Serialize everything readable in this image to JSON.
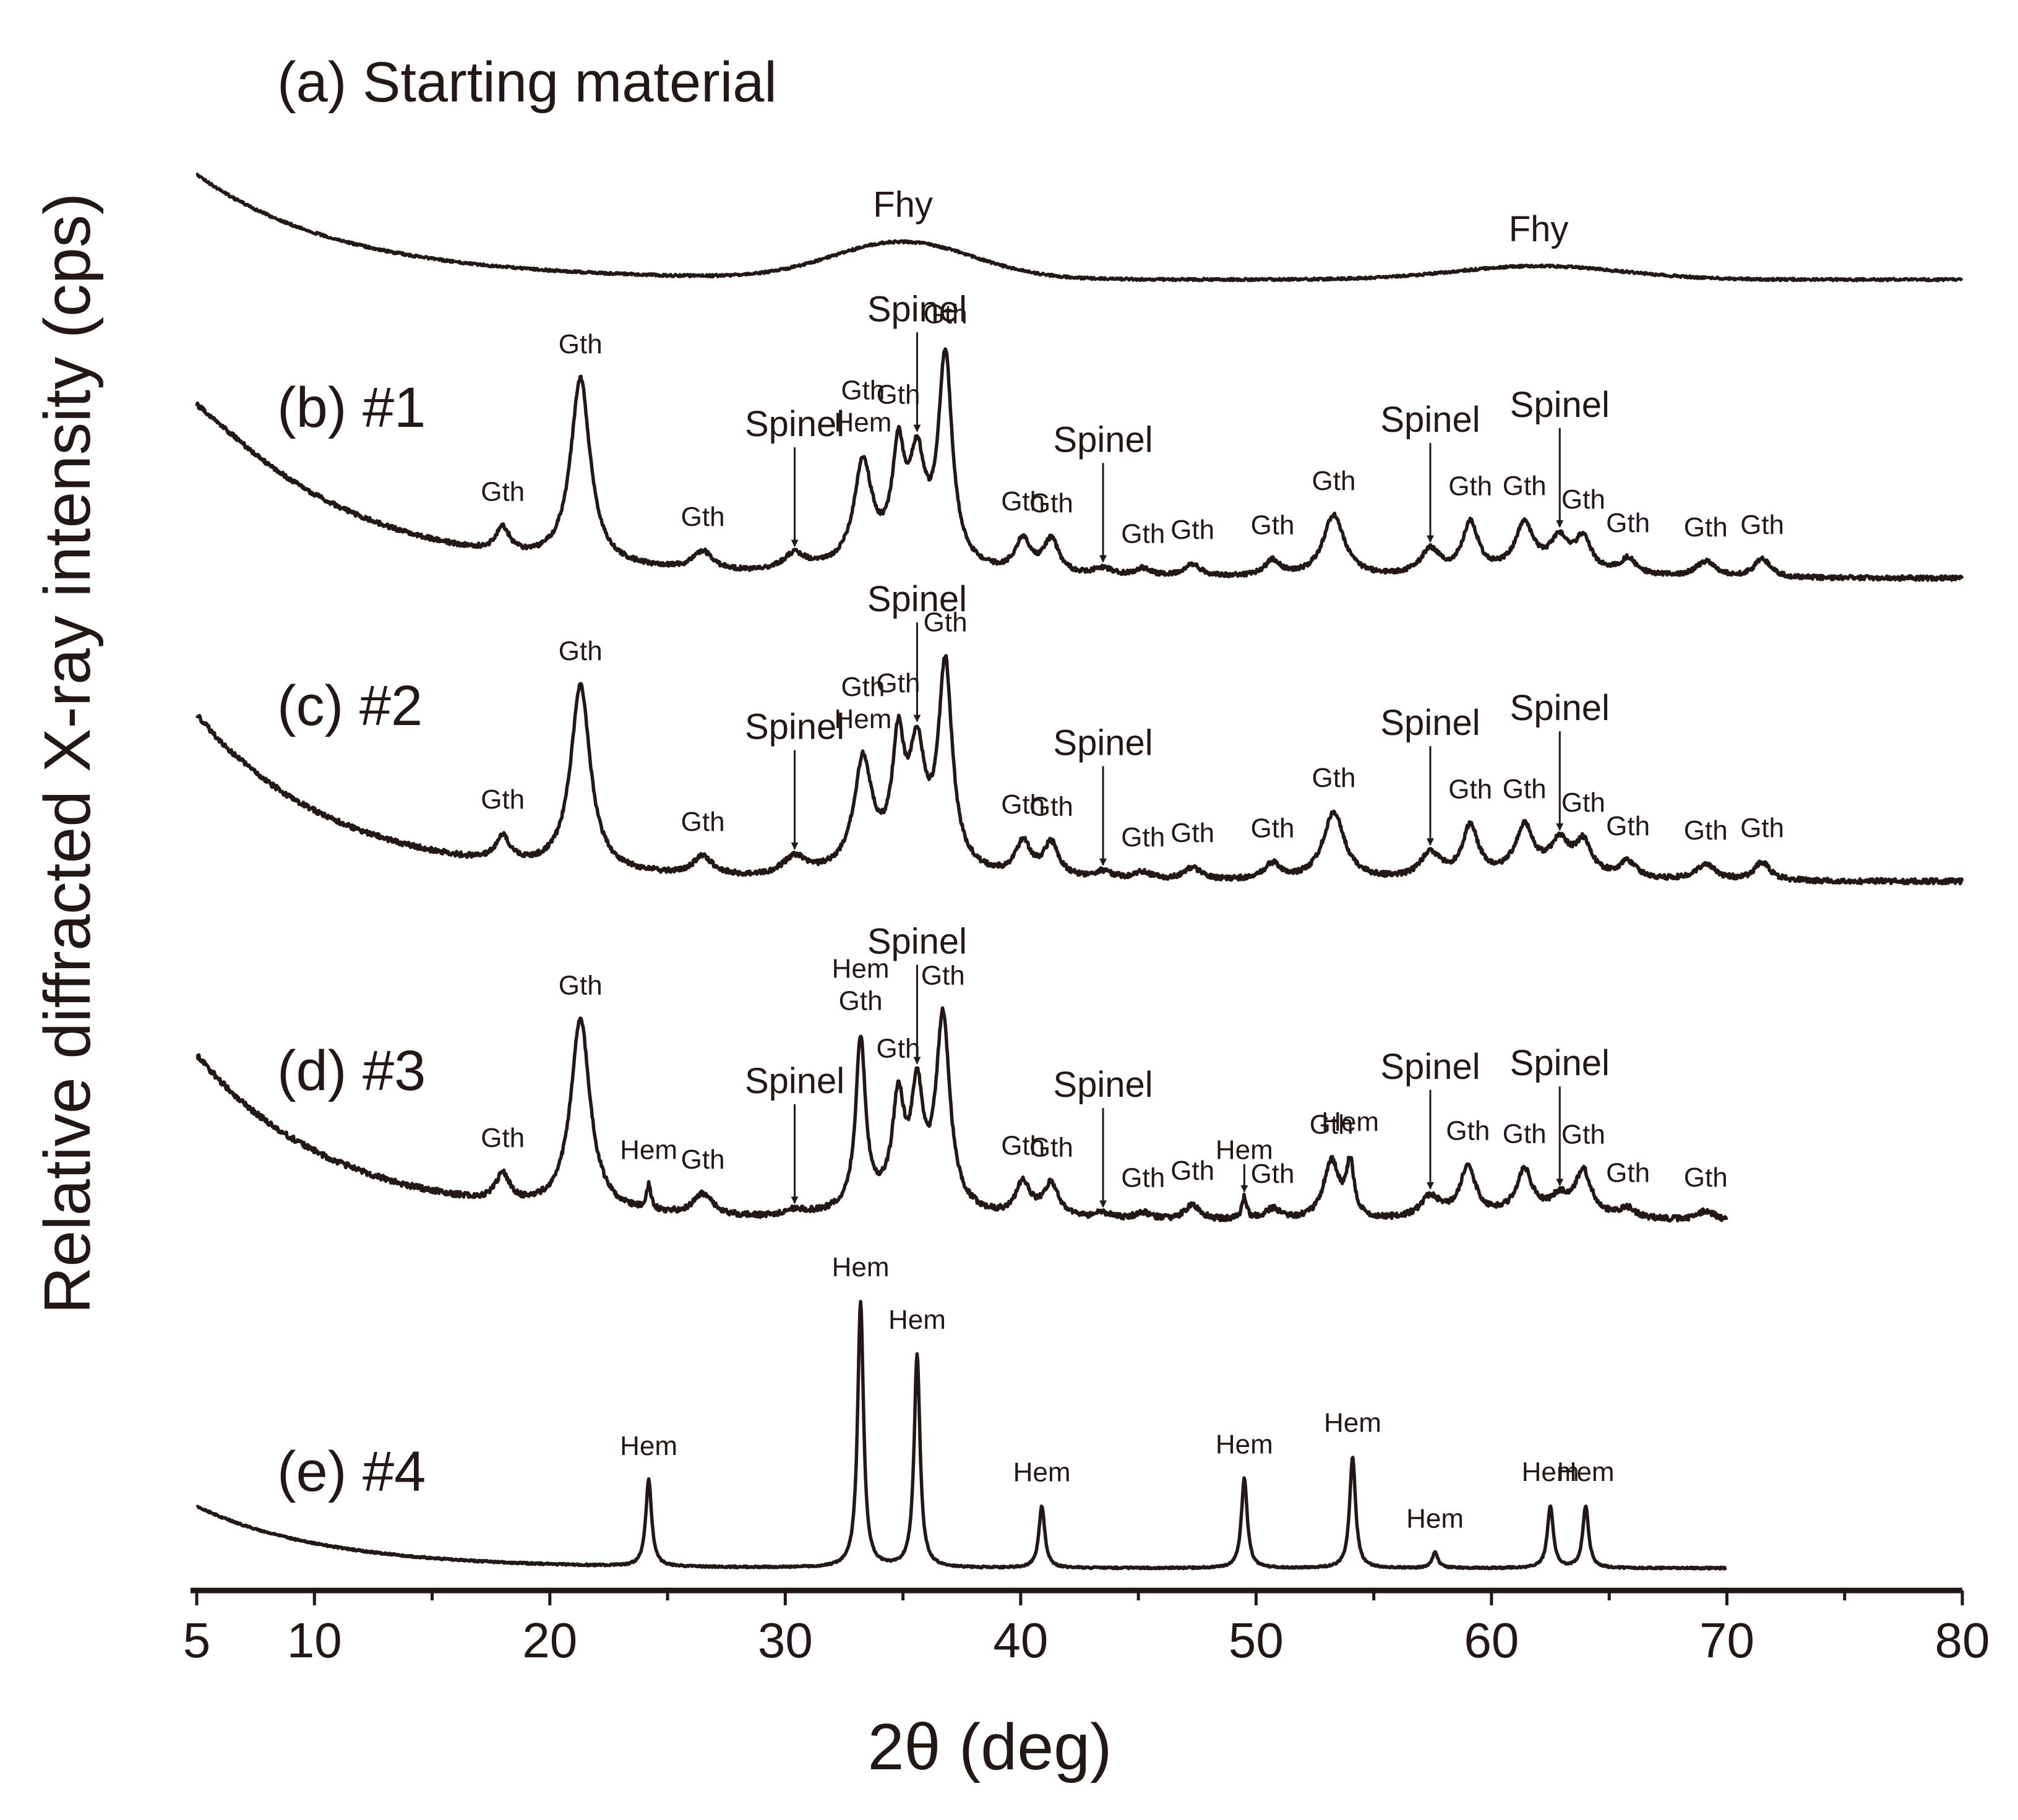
{
  "chart_data": {
    "type": "line",
    "title": "",
    "xlabel": "2θ (deg)",
    "ylabel": "Relative diffracted X-ray intensity (cps)",
    "xlim": [
      5,
      80
    ],
    "x_ticks": [
      5,
      10,
      20,
      30,
      40,
      50,
      60,
      70,
      80
    ],
    "x_tick_labels": [
      "5",
      "10",
      "20",
      "30",
      "40",
      "50",
      "60",
      "70",
      "80"
    ],
    "x_minor_ticks": [
      15,
      25,
      35,
      45,
      55,
      65,
      75
    ],
    "y_ticks_shown": false,
    "grid": false,
    "colors": {
      "trace": "#231815",
      "text": "#231815"
    },
    "series": [
      {
        "name": "(a) Starting material",
        "x_end": 80,
        "peaks": [
          {
            "x": 35.0,
            "label": "Fhy"
          },
          {
            "x": 62.0,
            "label": "Fhy"
          }
        ]
      },
      {
        "name": "(b) #1",
        "x_end": 80,
        "peaks": [
          {
            "x": 18.0,
            "label": "Gth"
          },
          {
            "x": 21.3,
            "label": "Gth"
          },
          {
            "x": 26.5,
            "label": "Gth"
          },
          {
            "x": 30.4,
            "label": "Spinel",
            "arrow": true
          },
          {
            "x": 33.3,
            "label": "Hem"
          },
          {
            "x": 33.3,
            "label": "Gth"
          },
          {
            "x": 34.8,
            "label": "Gth"
          },
          {
            "x": 35.6,
            "label": "Spinel",
            "arrow": true
          },
          {
            "x": 36.8,
            "label": "Gth"
          },
          {
            "x": 40.1,
            "label": "Gth"
          },
          {
            "x": 41.3,
            "label": "Gth"
          },
          {
            "x": 43.5,
            "label": "Spinel",
            "arrow": true
          },
          {
            "x": 45.2,
            "label": "Gth"
          },
          {
            "x": 47.3,
            "label": "Gth"
          },
          {
            "x": 50.7,
            "label": "Gth"
          },
          {
            "x": 53.3,
            "label": "Gth"
          },
          {
            "x": 57.4,
            "label": "Spinel",
            "arrow": true
          },
          {
            "x": 59.1,
            "label": "Gth"
          },
          {
            "x": 61.4,
            "label": "Gth"
          },
          {
            "x": 62.9,
            "label": "Spinel",
            "arrow": true
          },
          {
            "x": 63.9,
            "label": "Gth"
          },
          {
            "x": 65.8,
            "label": "Gth"
          },
          {
            "x": 69.1,
            "label": "Gth"
          },
          {
            "x": 71.5,
            "label": "Gth"
          }
        ]
      },
      {
        "name": "(c) #2",
        "x_end": 80,
        "peaks": [
          {
            "x": 18.0,
            "label": "Gth"
          },
          {
            "x": 21.3,
            "label": "Gth"
          },
          {
            "x": 26.5,
            "label": "Gth"
          },
          {
            "x": 30.4,
            "label": "Spinel",
            "arrow": true
          },
          {
            "x": 33.3,
            "label": "Hem"
          },
          {
            "x": 33.3,
            "label": "Gth"
          },
          {
            "x": 34.8,
            "label": "Gth"
          },
          {
            "x": 35.6,
            "label": "Spinel",
            "arrow": true
          },
          {
            "x": 36.8,
            "label": "Gth"
          },
          {
            "x": 40.1,
            "label": "Gth"
          },
          {
            "x": 41.3,
            "label": "Gth"
          },
          {
            "x": 43.5,
            "label": "Spinel",
            "arrow": true
          },
          {
            "x": 45.2,
            "label": "Gth"
          },
          {
            "x": 47.3,
            "label": "Gth"
          },
          {
            "x": 50.7,
            "label": "Gth"
          },
          {
            "x": 53.3,
            "label": "Gth"
          },
          {
            "x": 57.4,
            "label": "Spinel",
            "arrow": true
          },
          {
            "x": 59.1,
            "label": "Gth"
          },
          {
            "x": 61.4,
            "label": "Gth"
          },
          {
            "x": 62.9,
            "label": "Spinel",
            "arrow": true
          },
          {
            "x": 63.9,
            "label": "Gth"
          },
          {
            "x": 65.8,
            "label": "Gth"
          },
          {
            "x": 69.1,
            "label": "Gth"
          },
          {
            "x": 71.5,
            "label": "Gth"
          }
        ]
      },
      {
        "name": "(d) #3",
        "x_end": 70,
        "peaks": [
          {
            "x": 18.0,
            "label": "Gth"
          },
          {
            "x": 21.3,
            "label": "Gth"
          },
          {
            "x": 24.2,
            "label": "Hem"
          },
          {
            "x": 26.5,
            "label": "Gth"
          },
          {
            "x": 30.4,
            "label": "Spinel",
            "arrow": true
          },
          {
            "x": 33.2,
            "label": "Gth"
          },
          {
            "x": 33.2,
            "label": "Hem"
          },
          {
            "x": 34.8,
            "label": "Gth"
          },
          {
            "x": 35.6,
            "label": "Spinel",
            "arrow": true
          },
          {
            "x": 36.7,
            "label": "Gth"
          },
          {
            "x": 40.1,
            "label": "Gth"
          },
          {
            "x": 41.3,
            "label": "Gth"
          },
          {
            "x": 43.5,
            "label": "Spinel",
            "arrow": true
          },
          {
            "x": 45.2,
            "label": "Gth"
          },
          {
            "x": 47.3,
            "label": "Gth"
          },
          {
            "x": 49.5,
            "label": "Hem",
            "arrow": true
          },
          {
            "x": 50.7,
            "label": "Gth"
          },
          {
            "x": 53.2,
            "label": "Gth"
          },
          {
            "x": 54.0,
            "label": "Hem"
          },
          {
            "x": 57.4,
            "label": "Spinel",
            "arrow": true
          },
          {
            "x": 59.0,
            "label": "Gth"
          },
          {
            "x": 61.4,
            "label": "Gth"
          },
          {
            "x": 62.9,
            "label": "Spinel",
            "arrow": true
          },
          {
            "x": 63.9,
            "label": "Gth"
          },
          {
            "x": 65.8,
            "label": "Gth"
          },
          {
            "x": 69.1,
            "label": "Gth"
          }
        ]
      },
      {
        "name": "(e) #4",
        "x_end": 70,
        "peaks": [
          {
            "x": 24.2,
            "label": "Hem"
          },
          {
            "x": 33.2,
            "label": "Hem"
          },
          {
            "x": 35.6,
            "label": "Hem"
          },
          {
            "x": 40.9,
            "label": "Hem"
          },
          {
            "x": 49.5,
            "label": "Hem"
          },
          {
            "x": 54.1,
            "label": "Hem"
          },
          {
            "x": 57.6,
            "label": "Hem"
          },
          {
            "x": 62.5,
            "label": "Hem"
          },
          {
            "x": 64.0,
            "label": "Hem"
          }
        ]
      }
    ]
  }
}
